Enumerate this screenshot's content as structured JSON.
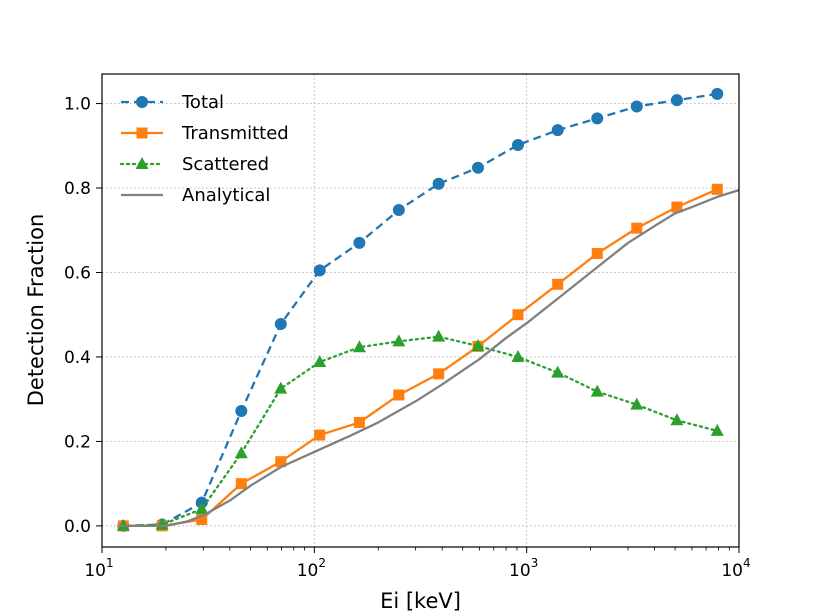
{
  "chart_data": {
    "type": "line",
    "xscale": "log",
    "xlabel": "Ei [keV]",
    "ylabel": "Detection Fraction",
    "xlim": [
      10,
      10000
    ],
    "ylim": [
      -0.05,
      1.07
    ],
    "grid": true,
    "legend_position": "top-left",
    "x_ticks": [
      {
        "value": 10,
        "base": "10",
        "exp": "1"
      },
      {
        "value": 100,
        "base": "10",
        "exp": "2"
      },
      {
        "value": 1000,
        "base": "10",
        "exp": "3"
      },
      {
        "value": 10000,
        "base": "10",
        "exp": "4"
      }
    ],
    "y_ticks": [
      {
        "value": 0.0,
        "label": "0.0"
      },
      {
        "value": 0.2,
        "label": "0.2"
      },
      {
        "value": 0.4,
        "label": "0.4"
      },
      {
        "value": 0.6,
        "label": "0.6"
      },
      {
        "value": 0.8,
        "label": "0.8"
      },
      {
        "value": 1.0,
        "label": "1.0"
      }
    ],
    "series": [
      {
        "name": "Total",
        "color": "#1f77b4",
        "linestyle": "dashed",
        "marker": "circle",
        "x": [
          12.6,
          19.2,
          29.5,
          45.3,
          69.5,
          106,
          163,
          250,
          385,
          590,
          910,
          1400,
          2150,
          3300,
          5100,
          7900
        ],
        "values": [
          0.0,
          0.003,
          0.055,
          0.272,
          0.478,
          0.605,
          0.67,
          0.748,
          0.81,
          0.848,
          0.902,
          0.937,
          0.965,
          0.993,
          1.008,
          1.023
        ]
      },
      {
        "name": "Transmitted",
        "color": "#ff7f0e",
        "linestyle": "solid",
        "marker": "square",
        "x": [
          12.6,
          19.2,
          29.5,
          45.3,
          69.5,
          106,
          163,
          250,
          385,
          590,
          910,
          1400,
          2150,
          3300,
          5100,
          7900
        ],
        "values": [
          0.0,
          0.0,
          0.015,
          0.1,
          0.152,
          0.215,
          0.245,
          0.31,
          0.36,
          0.425,
          0.5,
          0.572,
          0.645,
          0.705,
          0.755,
          0.797
        ]
      },
      {
        "name": "Scattered",
        "color": "#2ca02c",
        "linestyle": "dotted",
        "marker": "triangle",
        "x": [
          12.6,
          19.2,
          29.5,
          45.3,
          69.5,
          106,
          163,
          250,
          385,
          590,
          910,
          1400,
          2150,
          3300,
          5100,
          7900
        ],
        "values": [
          0.0,
          0.003,
          0.04,
          0.172,
          0.325,
          0.388,
          0.423,
          0.437,
          0.448,
          0.426,
          0.4,
          0.363,
          0.318,
          0.287,
          0.25,
          0.225
        ]
      },
      {
        "name": "Analytical",
        "color": "#808080",
        "linestyle": "solid",
        "marker": "none",
        "x": [
          12,
          20,
          25,
          30,
          40,
          50,
          70,
          100,
          150,
          200,
          300,
          400,
          600,
          800,
          1000,
          1500,
          2000,
          3000,
          4000,
          5000,
          6000,
          8000,
          10000
        ],
        "values": [
          0.0,
          0.0,
          0.01,
          0.025,
          0.06,
          0.095,
          0.14,
          0.175,
          0.215,
          0.245,
          0.295,
          0.335,
          0.395,
          0.445,
          0.48,
          0.55,
          0.6,
          0.67,
          0.71,
          0.74,
          0.755,
          0.78,
          0.795
        ]
      }
    ]
  }
}
